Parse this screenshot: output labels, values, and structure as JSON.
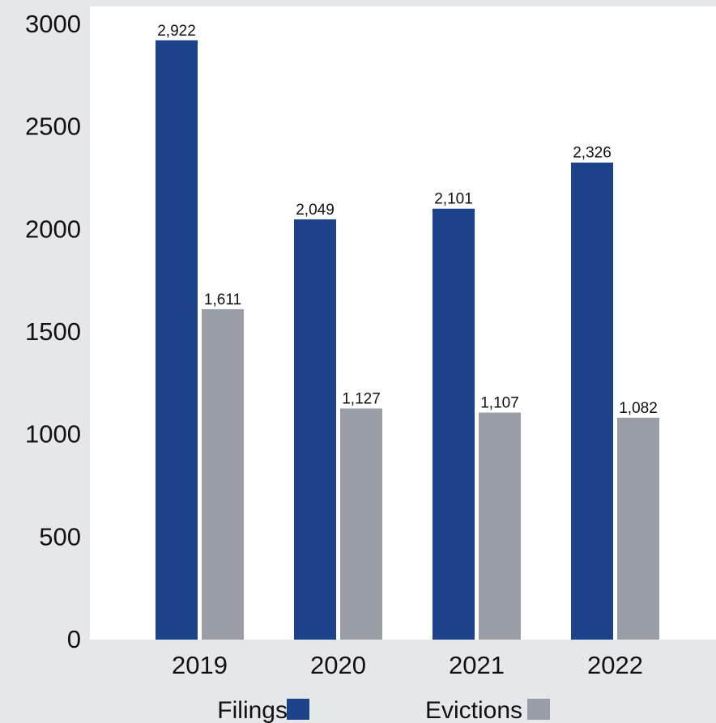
{
  "chart_data": {
    "type": "bar",
    "title": "",
    "xlabel": "",
    "ylabel": "",
    "categories": [
      "2019",
      "2020",
      "2021",
      "2022"
    ],
    "series": [
      {
        "name": "Filings",
        "values": [
          2922,
          2049,
          2101,
          2326
        ],
        "labels": [
          "2,922",
          "2,049",
          "2,101",
          "2,326"
        ],
        "color": "#1c428a"
      },
      {
        "name": "Evictions",
        "values": [
          1611,
          1127,
          1107,
          1082
        ],
        "labels": [
          "1,611",
          "1,127",
          "1,107",
          "1,082"
        ],
        "color": "#9a9ea6"
      }
    ],
    "ylim": [
      0,
      3000
    ],
    "yticks": [
      0,
      500,
      1000,
      1500,
      2000,
      2500,
      3000
    ],
    "ytick_labels": [
      "0",
      "500",
      "1000",
      "1500",
      "2000",
      "2500",
      "3000"
    ],
    "grid": false,
    "legend_position": "bottom-center"
  },
  "colors": {
    "background": "#e6e7ea",
    "plot_area": "#ffffff"
  }
}
